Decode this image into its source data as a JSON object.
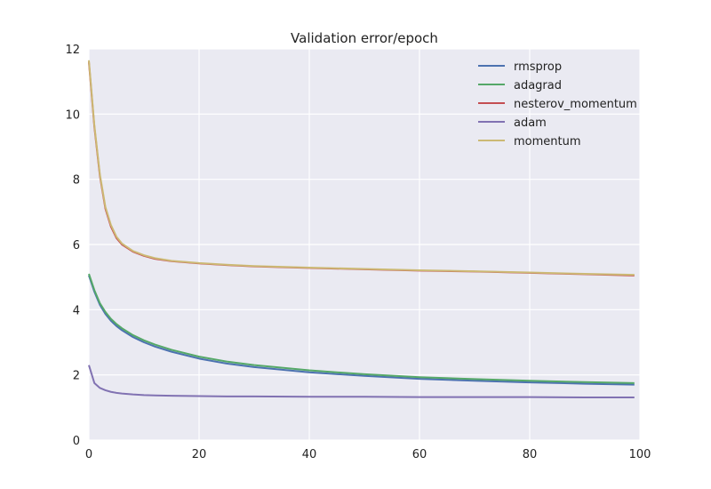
{
  "chart_data": {
    "type": "line",
    "title": "Validation error/epoch",
    "xlabel": "",
    "ylabel": "",
    "xlim": [
      0,
      100
    ],
    "ylim": [
      0,
      12
    ],
    "x_ticks": [
      "0",
      "20",
      "40",
      "60",
      "80",
      "100"
    ],
    "y_ticks": [
      "0",
      "2",
      "4",
      "6",
      "8",
      "10",
      "12"
    ],
    "grid": true,
    "legend_position": "top-right",
    "x": [
      0,
      1,
      2,
      3,
      4,
      5,
      6,
      8,
      10,
      12,
      15,
      20,
      25,
      30,
      40,
      50,
      60,
      70,
      80,
      90,
      99
    ],
    "series": [
      {
        "name": "rmsprop",
        "color": "#4c72b0",
        "values": [
          5.05,
          4.55,
          4.15,
          3.87,
          3.66,
          3.5,
          3.37,
          3.16,
          3.0,
          2.87,
          2.71,
          2.5,
          2.35,
          2.24,
          2.08,
          1.97,
          1.88,
          1.82,
          1.77,
          1.73,
          1.7
        ]
      },
      {
        "name": "adagrad",
        "color": "#55a868",
        "values": [
          5.1,
          4.6,
          4.2,
          3.93,
          3.72,
          3.56,
          3.43,
          3.22,
          3.06,
          2.93,
          2.77,
          2.56,
          2.41,
          2.3,
          2.14,
          2.02,
          1.93,
          1.87,
          1.82,
          1.78,
          1.75
        ]
      },
      {
        "name": "nesterov_momentum",
        "color": "#c44e52",
        "values": [
          11.6,
          9.6,
          8.1,
          7.1,
          6.55,
          6.2,
          6.0,
          5.78,
          5.65,
          5.56,
          5.49,
          5.42,
          5.37,
          5.33,
          5.28,
          5.24,
          5.2,
          5.17,
          5.13,
          5.09,
          5.05
        ]
      },
      {
        "name": "adam",
        "color": "#8172b2",
        "values": [
          2.3,
          1.75,
          1.6,
          1.53,
          1.48,
          1.45,
          1.43,
          1.4,
          1.38,
          1.37,
          1.36,
          1.35,
          1.34,
          1.34,
          1.33,
          1.33,
          1.32,
          1.32,
          1.32,
          1.31,
          1.31
        ]
      },
      {
        "name": "momentum",
        "color": "#ccb974",
        "values": [
          11.65,
          9.65,
          8.15,
          7.15,
          6.6,
          6.24,
          6.03,
          5.8,
          5.67,
          5.58,
          5.5,
          5.43,
          5.38,
          5.34,
          5.29,
          5.25,
          5.21,
          5.18,
          5.14,
          5.1,
          5.07
        ]
      }
    ]
  }
}
